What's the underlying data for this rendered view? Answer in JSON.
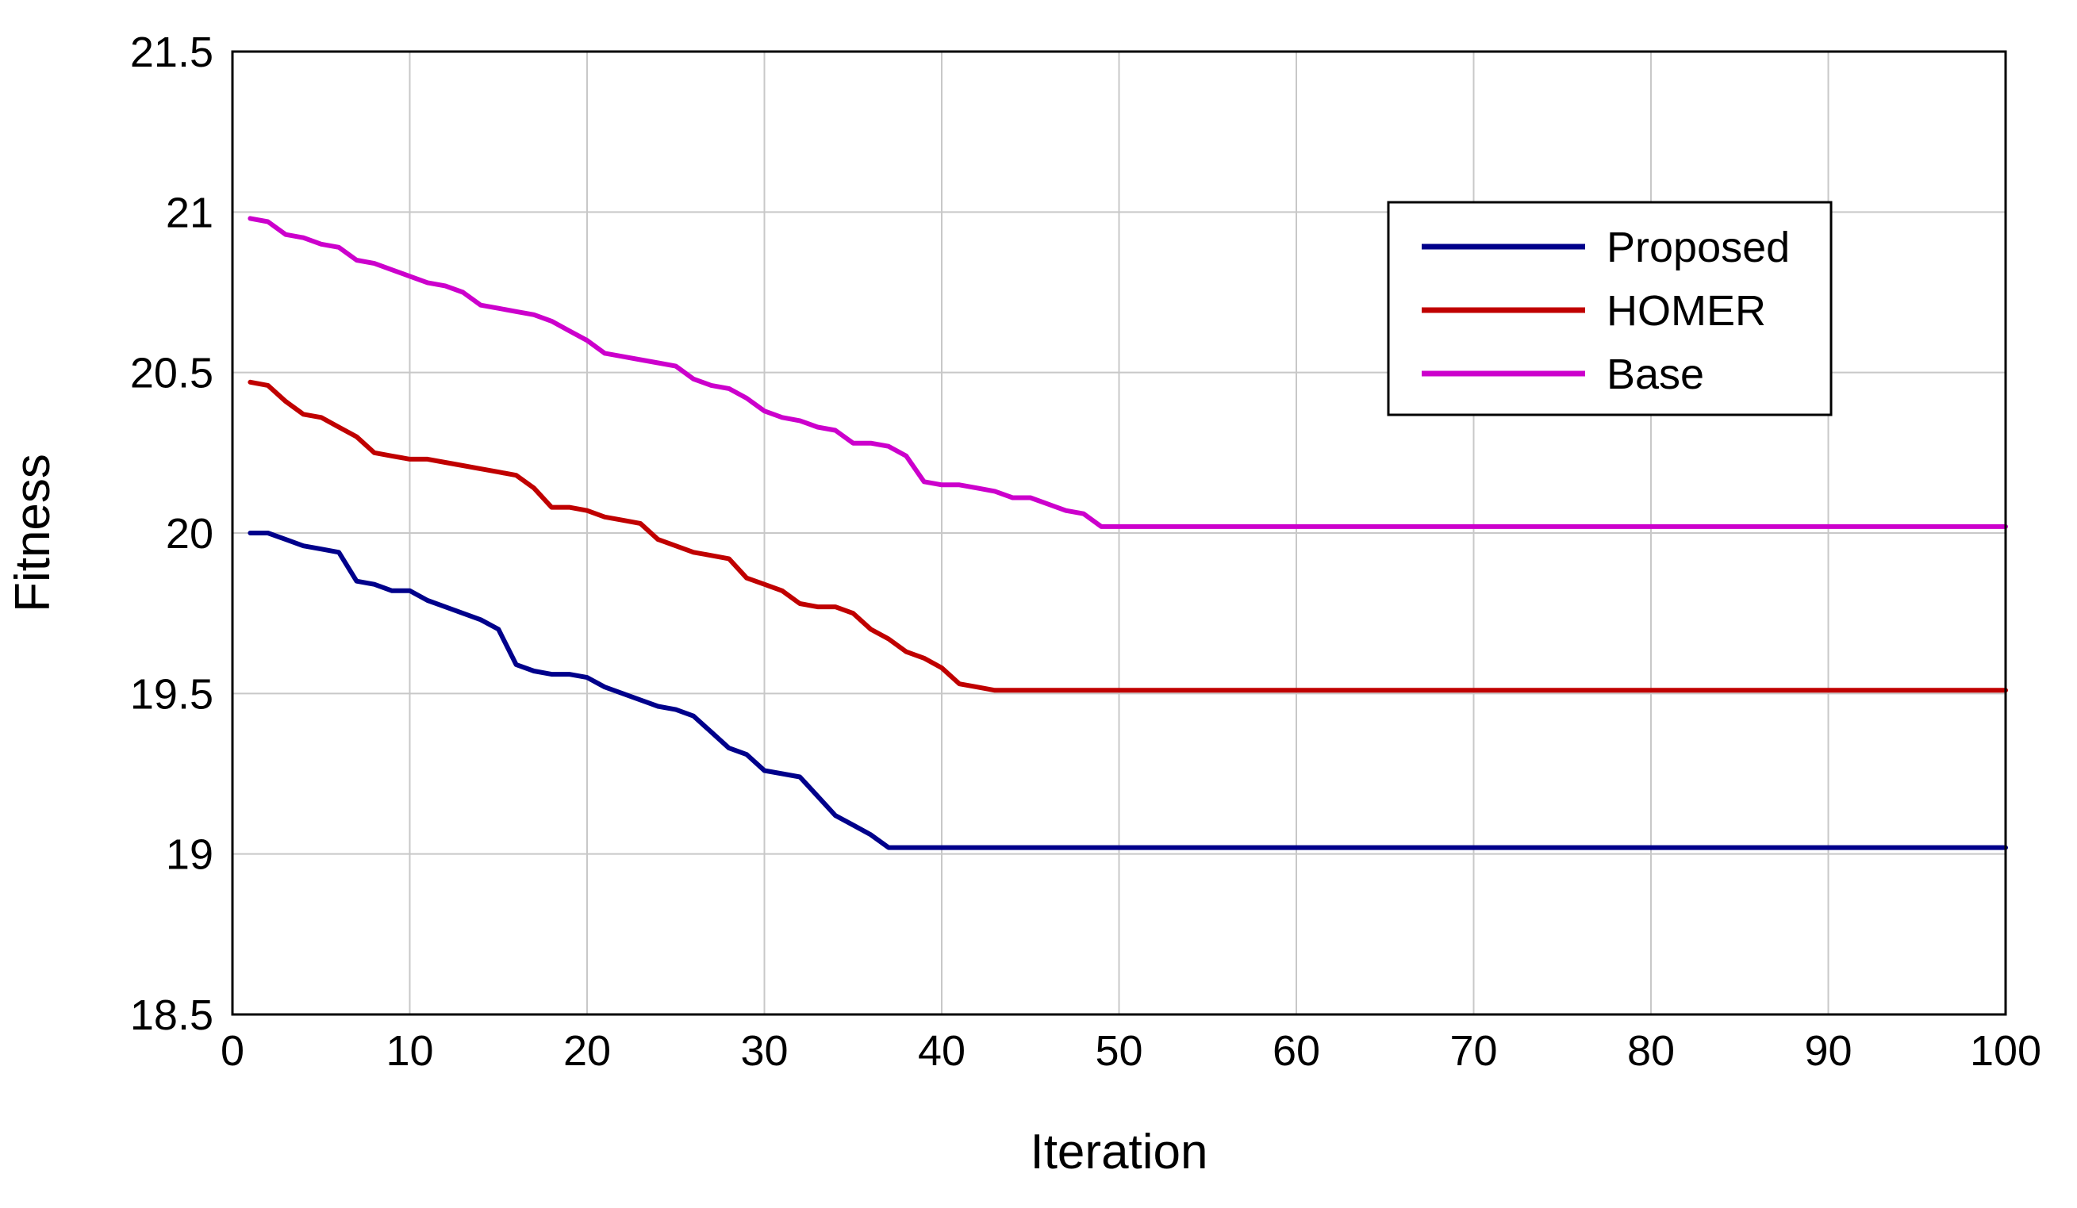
{
  "chart_data": {
    "type": "line",
    "title": "",
    "xlabel": "Iteration",
    "ylabel": "Fitness",
    "xlim": [
      0,
      100
    ],
    "ylim": [
      18.5,
      21.5
    ],
    "xticks": [
      0,
      10,
      20,
      30,
      40,
      50,
      60,
      70,
      80,
      90,
      100
    ],
    "yticks": [
      18.5,
      19,
      19.5,
      20,
      20.5,
      21,
      21.5
    ],
    "xtick_labels": [
      "0",
      "10",
      "20",
      "30",
      "40",
      "50",
      "60",
      "70",
      "80",
      "90",
      "100"
    ],
    "ytick_labels": [
      "18.5",
      "19",
      "19.5",
      "20",
      "20.5",
      "21",
      "21.5"
    ],
    "grid": true,
    "legend_position": "top-right",
    "series": [
      {
        "name": "Proposed",
        "color": "#00008b",
        "x": [
          1,
          2,
          3,
          4,
          5,
          6,
          7,
          8,
          9,
          10,
          11,
          12,
          13,
          14,
          15,
          16,
          17,
          18,
          19,
          20,
          21,
          22,
          23,
          24,
          25,
          26,
          27,
          28,
          29,
          30,
          31,
          32,
          33,
          34,
          35,
          36,
          37,
          38,
          100
        ],
        "values": [
          20.0,
          20.0,
          19.98,
          19.96,
          19.95,
          19.94,
          19.85,
          19.84,
          19.82,
          19.82,
          19.79,
          19.77,
          19.75,
          19.73,
          19.7,
          19.59,
          19.57,
          19.56,
          19.56,
          19.55,
          19.52,
          19.5,
          19.48,
          19.46,
          19.45,
          19.43,
          19.38,
          19.33,
          19.31,
          19.26,
          19.25,
          19.24,
          19.18,
          19.12,
          19.09,
          19.06,
          19.02,
          19.02,
          19.02
        ]
      },
      {
        "name": "HOMER",
        "color": "#c00000",
        "x": [
          1,
          2,
          3,
          4,
          5,
          6,
          7,
          8,
          9,
          10,
          11,
          12,
          13,
          14,
          15,
          16,
          17,
          18,
          19,
          20,
          21,
          22,
          23,
          24,
          25,
          26,
          27,
          28,
          29,
          30,
          31,
          32,
          33,
          34,
          35,
          36,
          37,
          38,
          39,
          40,
          41,
          42,
          43,
          100
        ],
        "values": [
          20.47,
          20.46,
          20.41,
          20.37,
          20.36,
          20.33,
          20.3,
          20.25,
          20.24,
          20.23,
          20.23,
          20.22,
          20.21,
          20.2,
          20.19,
          20.18,
          20.14,
          20.08,
          20.08,
          20.07,
          20.05,
          20.04,
          20.03,
          19.98,
          19.96,
          19.94,
          19.93,
          19.92,
          19.86,
          19.84,
          19.82,
          19.78,
          19.77,
          19.77,
          19.75,
          19.7,
          19.67,
          19.63,
          19.61,
          19.58,
          19.53,
          19.52,
          19.51,
          19.51
        ]
      },
      {
        "name": "Base",
        "color": "#cc00cc",
        "x": [
          1,
          2,
          3,
          4,
          5,
          6,
          7,
          8,
          9,
          10,
          11,
          12,
          13,
          14,
          15,
          16,
          17,
          18,
          19,
          20,
          21,
          22,
          23,
          24,
          25,
          26,
          27,
          28,
          29,
          30,
          31,
          32,
          33,
          34,
          35,
          36,
          37,
          38,
          39,
          40,
          41,
          42,
          43,
          44,
          45,
          46,
          47,
          48,
          49,
          100
        ],
        "values": [
          20.98,
          20.97,
          20.93,
          20.92,
          20.9,
          20.89,
          20.85,
          20.84,
          20.82,
          20.8,
          20.78,
          20.77,
          20.75,
          20.71,
          20.7,
          20.69,
          20.68,
          20.66,
          20.63,
          20.6,
          20.56,
          20.55,
          20.54,
          20.53,
          20.52,
          20.48,
          20.46,
          20.45,
          20.42,
          20.38,
          20.36,
          20.35,
          20.33,
          20.32,
          20.28,
          20.28,
          20.27,
          20.24,
          20.16,
          20.15,
          20.15,
          20.14,
          20.13,
          20.11,
          20.11,
          20.09,
          20.07,
          20.06,
          20.02,
          20.02
        ]
      }
    ]
  }
}
